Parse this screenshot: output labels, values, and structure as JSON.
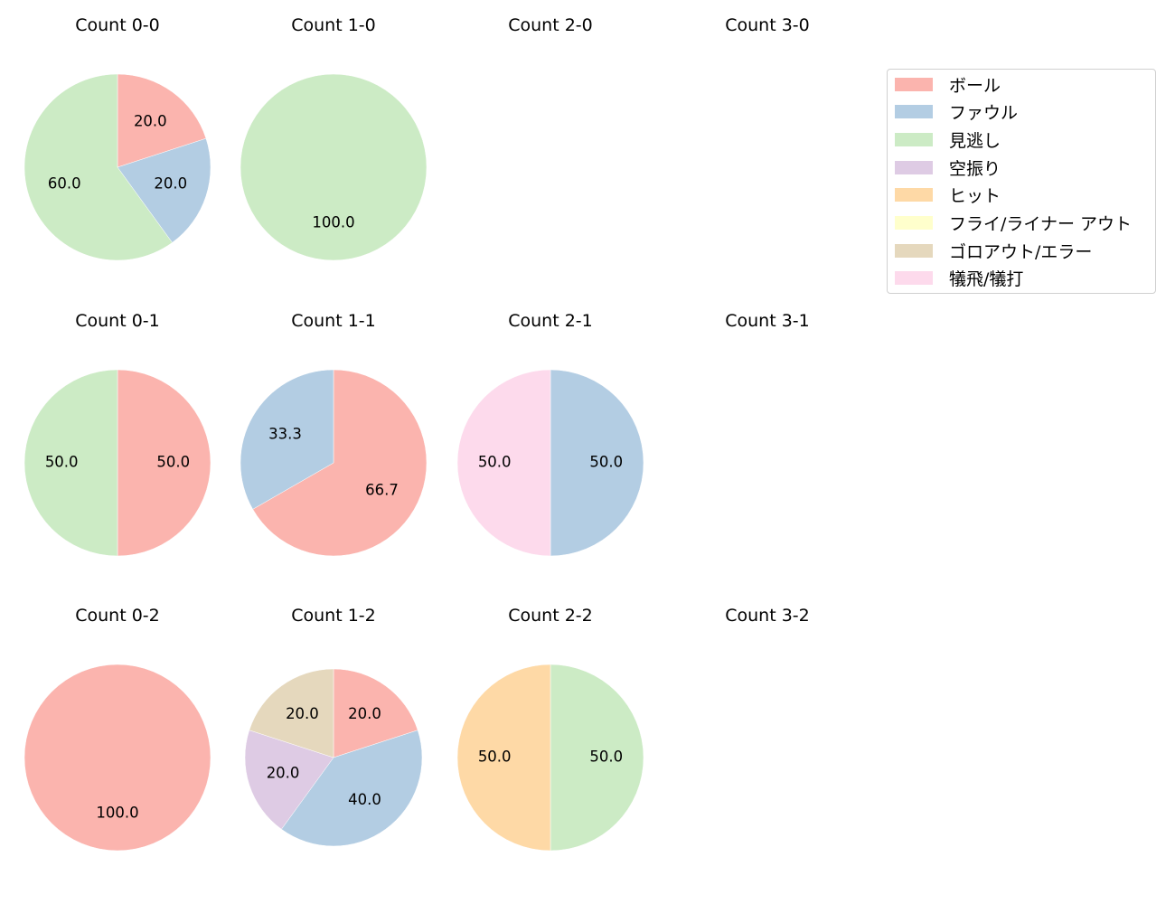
{
  "chart_data": {
    "type": "pie",
    "categories": [
      "ボール",
      "ファウル",
      "見逃し",
      "空振り",
      "ヒット",
      "フライ/ライナー アウト",
      "ゴロアウト/エラー",
      "犠飛/犠打"
    ],
    "colors": [
      "#fbb4ae",
      "#b3cde3",
      "#ccebc5",
      "#decbe4",
      "#fed9a6",
      "#ffffcc",
      "#e5d8bd",
      "#fddaec"
    ],
    "legend_position": "upper right",
    "subplots": [
      {
        "title": "Count 0-0",
        "row": 0,
        "col": 0,
        "values": {
          "ボール": 20.0,
          "ファウル": 20.0,
          "見逃し": 60.0
        }
      },
      {
        "title": "Count 1-0",
        "row": 0,
        "col": 1,
        "values": {
          "見逃し": 100.0
        }
      },
      {
        "title": "Count 2-0",
        "row": 0,
        "col": 2,
        "values": {}
      },
      {
        "title": "Count 3-0",
        "row": 0,
        "col": 3,
        "values": {}
      },
      {
        "title": "Count 0-1",
        "row": 1,
        "col": 0,
        "values": {
          "ボール": 50.0,
          "見逃し": 50.0
        }
      },
      {
        "title": "Count 1-1",
        "row": 1,
        "col": 1,
        "values": {
          "ボール": 66.7,
          "ファウル": 33.3
        }
      },
      {
        "title": "Count 2-1",
        "row": 1,
        "col": 2,
        "values": {
          "ファウル": 50.0,
          "犠飛/犠打": 50.0
        }
      },
      {
        "title": "Count 3-1",
        "row": 1,
        "col": 3,
        "values": {}
      },
      {
        "title": "Count 0-2",
        "row": 2,
        "col": 0,
        "values": {
          "ボール": 100.0
        }
      },
      {
        "title": "Count 1-2",
        "row": 2,
        "col": 1,
        "values": {
          "ボール": 20.0,
          "ファウル": 40.0,
          "空振り": 20.0,
          "ゴロアウト/エラー": 20.0
        }
      },
      {
        "title": "Count 2-2",
        "row": 2,
        "col": 2,
        "values": {
          "見逃し": 50.0,
          "ヒット": 50.0
        }
      },
      {
        "title": "Count 3-2",
        "row": 2,
        "col": 3,
        "values": {}
      }
    ]
  },
  "titles": [
    "Count 0-0",
    "Count 1-0",
    "Count 2-0",
    "Count 3-0",
    "Count 0-1",
    "Count 1-1",
    "Count 2-1",
    "Count 3-1",
    "Count 0-2",
    "Count 1-2",
    "Count 2-2",
    "Count 3-2"
  ],
  "legend": {
    "items": [
      {
        "label": "ボール",
        "color": "#fbb4ae"
      },
      {
        "label": "ファウル",
        "color": "#b3cde3"
      },
      {
        "label": "見逃し",
        "color": "#ccebc5"
      },
      {
        "label": "空振り",
        "color": "#decbe4"
      },
      {
        "label": "ヒット",
        "color": "#fed9a6"
      },
      {
        "label": "フライ/ライナー アウト",
        "color": "#ffffcc"
      },
      {
        "label": "ゴロアウト/エラー",
        "color": "#e5d8bd"
      },
      {
        "label": "犠飛/犠打",
        "color": "#fddaec"
      }
    ]
  }
}
